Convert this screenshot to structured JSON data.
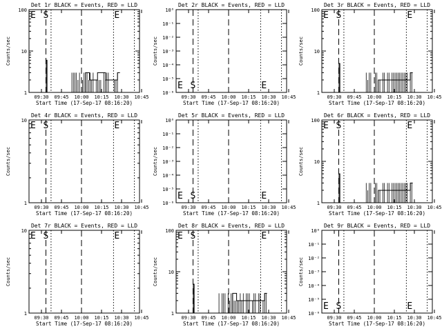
{
  "chart_data": [
    {
      "type": "line",
      "title": "Det 1r BLACK = Events, RED = LLD",
      "xlabel": "Start Time (17-Sep-17 08:16:20)",
      "ylabel": "Counts/sec",
      "y_scale": "log",
      "ylim": [
        1,
        100
      ],
      "ytick_labels": [
        "1",
        "10",
        "100"
      ],
      "xtick_labels": [
        "09:30",
        "09:45",
        "10:00",
        "10:15",
        "10:30",
        "10:45"
      ],
      "markers": {
        "E1": "E",
        "S": "S",
        "E2": "E"
      },
      "series": [
        {
          "values": [
            [
              9.55,
              1
            ],
            [
              9.56,
              6
            ],
            [
              9.57,
              1
            ],
            [
              9.88,
              1
            ],
            [
              10.05,
              3
            ],
            [
              10.1,
              2
            ],
            [
              10.2,
              3
            ],
            [
              10.3,
              2
            ],
            [
              10.45,
              3
            ],
            [
              10.48,
              3
            ]
          ]
        }
      ]
    },
    {
      "type": "line",
      "title": "Det 2r BLACK = Events, RED = LLD",
      "xlabel": "Start Time (17-Sep-17 08:16:20)",
      "ylabel": "Counts/sec",
      "y_scale": "log",
      "ylim": [
        1e-06,
        1
      ],
      "ytick_labels": [
        "10⁰",
        "10⁻¹",
        "10⁻²",
        "10⁻³",
        "10⁻⁴",
        "10⁻⁵",
        "10⁻⁶"
      ],
      "xtick_labels": [
        "09:30",
        "09:45",
        "10:00",
        "10:15",
        "10:30",
        "10:45"
      ],
      "markers": {
        "E1": "E",
        "S": "S",
        "E2": "E"
      },
      "series": []
    },
    {
      "type": "line",
      "title": "Det 3r BLACK = Events, RED = LLD",
      "xlabel": "Start Time (17-Sep-17 08:16:20)",
      "ylabel": "Counts/sec",
      "y_scale": "log",
      "ylim": [
        1,
        100
      ],
      "ytick_labels": [
        "1",
        "10",
        "100"
      ],
      "xtick_labels": [
        "09:30",
        "09:45",
        "10:00",
        "10:15",
        "10:30",
        "10:45"
      ],
      "markers": {
        "E1": "E",
        "S": "S",
        "E2": "E"
      },
      "series": [
        {
          "values": [
            [
              9.55,
              1
            ],
            [
              9.56,
              5
            ],
            [
              9.57,
              1
            ],
            [
              10.05,
              2
            ],
            [
              10.2,
              2
            ],
            [
              10.35,
              2
            ],
            [
              10.45,
              3
            ],
            [
              10.48,
              3
            ]
          ]
        }
      ]
    },
    {
      "type": "line",
      "title": "Det 4r BLACK = Events, RED = LLD",
      "xlabel": "Start Time (17-Sep-17 08:16:20)",
      "ylabel": "Counts/sec",
      "y_scale": "log",
      "ylim": [
        1,
        10
      ],
      "ytick_labels": [
        "1",
        "10"
      ],
      "xtick_labels": [
        "09:30",
        "09:45",
        "10:00",
        "10:15",
        "10:30",
        "10:45"
      ],
      "markers": {
        "E1": "E",
        "S": "S",
        "E2": "E"
      },
      "series": []
    },
    {
      "type": "line",
      "title": "Det 5r BLACK = Events, RED = LLD",
      "xlabel": "Start Time (17-Sep-17 08:16:20)",
      "ylabel": "Counts/sec",
      "y_scale": "log",
      "ylim": [
        1e-06,
        1
      ],
      "ytick_labels": [
        "10⁰",
        "10⁻¹",
        "10⁻²",
        "10⁻³",
        "10⁻⁴",
        "10⁻⁵",
        "10⁻⁶"
      ],
      "xtick_labels": [
        "09:30",
        "09:45",
        "10:00",
        "10:15",
        "10:30",
        "10:45"
      ],
      "markers": {
        "E1": "E",
        "S": "S",
        "E2": "E"
      },
      "series": []
    },
    {
      "type": "line",
      "title": "Det 6r BLACK = Events, RED = LLD",
      "xlabel": "Start Time (17-Sep-17 08:16:20)",
      "ylabel": "Counts/sec",
      "y_scale": "log",
      "ylim": [
        1,
        100
      ],
      "ytick_labels": [
        "1",
        "10",
        "100"
      ],
      "xtick_labels": [
        "09:30",
        "09:45",
        "10:00",
        "10:15",
        "10:30",
        "10:45"
      ],
      "markers": {
        "E1": "E",
        "S": "S",
        "E2": "E"
      },
      "series": [
        {
          "values": [
            [
              9.55,
              1
            ],
            [
              9.56,
              5
            ],
            [
              9.57,
              1
            ],
            [
              10.05,
              2
            ],
            [
              10.2,
              2
            ],
            [
              10.35,
              2
            ],
            [
              10.45,
              3
            ],
            [
              10.48,
              3
            ]
          ]
        }
      ]
    },
    {
      "type": "line",
      "title": "Det 7r BLACK = Events, RED = LLD",
      "xlabel": "Start Time (17-Sep-17 08:16:20)",
      "ylabel": "Counts/sec",
      "y_scale": "log",
      "ylim": [
        1,
        10
      ],
      "ytick_labels": [
        "1",
        "10"
      ],
      "xtick_labels": [
        "09:30",
        "09:45",
        "10:00",
        "10:15",
        "10:30",
        "10:45"
      ],
      "markers": {
        "E1": "E",
        "S": "S",
        "E2": "E"
      },
      "series": []
    },
    {
      "type": "line",
      "title": "Det 8r BLACK = Events, RED = LLD",
      "xlabel": "Start Time (17-Sep-17 08:16:20)",
      "ylabel": "Counts/sec",
      "y_scale": "log",
      "ylim": [
        1,
        100
      ],
      "ytick_labels": [
        "1",
        "10",
        "100"
      ],
      "xtick_labels": [
        "09:30",
        "09:45",
        "10:00",
        "10:15",
        "10:30",
        "10:45"
      ],
      "markers": {
        "E1": "E",
        "S": "S",
        "E2": "E"
      },
      "series": [
        {
          "values": [
            [
              9.55,
              1
            ],
            [
              9.56,
              5
            ],
            [
              9.57,
              1
            ],
            [
              9.88,
              1
            ],
            [
              10.05,
              3
            ],
            [
              10.1,
              2
            ],
            [
              10.2,
              2
            ],
            [
              10.3,
              2
            ],
            [
              10.45,
              3
            ],
            [
              10.48,
              3
            ]
          ]
        }
      ]
    },
    {
      "type": "line",
      "title": "Det 9r BLACK = Events, RED = LLD",
      "xlabel": "Start Time (17-Sep-17 08:16:20)",
      "ylabel": "Counts/sec",
      "y_scale": "log",
      "ylim": [
        1e-06,
        1
      ],
      "ytick_labels": [
        "10⁰",
        "10⁻¹",
        "10⁻²",
        "10⁻³",
        "10⁻⁴",
        "10⁻⁵",
        "10⁻⁶"
      ],
      "xtick_labels": [
        "09:30",
        "09:45",
        "10:00",
        "10:15",
        "10:30",
        "10:45"
      ],
      "markers": {
        "E1": "E",
        "S": "S",
        "E2": "E"
      },
      "series": []
    }
  ]
}
